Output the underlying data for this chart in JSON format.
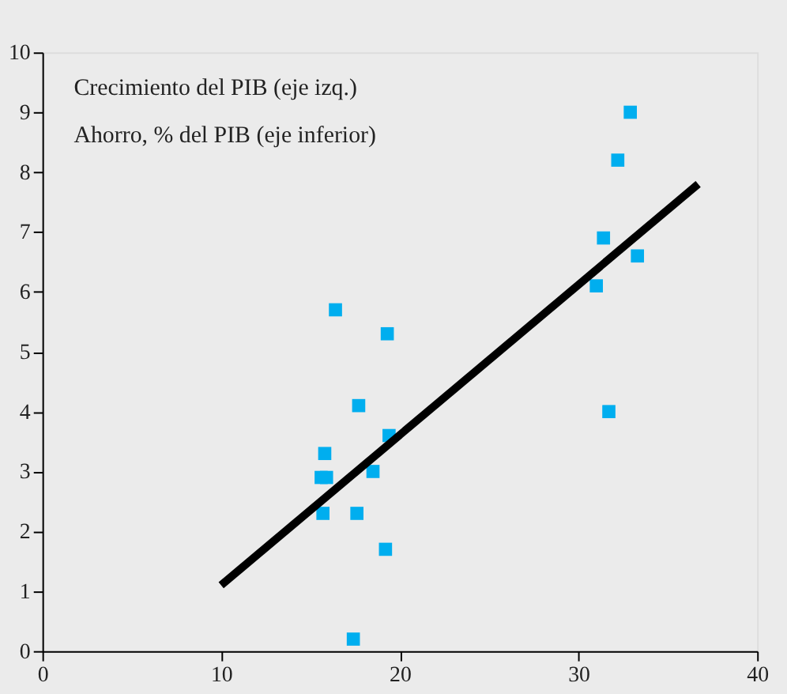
{
  "chart_data": {
    "type": "scatter",
    "annotations": [
      "Crecimiento del PIB (eje izq.)",
      "Ahorro, % del PIB (eje inferior)"
    ],
    "xlim": [
      0,
      40
    ],
    "xticks": [
      0,
      10,
      20,
      30,
      40
    ],
    "ylim": [
      0,
      10
    ],
    "yticks": [
      0,
      1,
      2,
      3,
      4,
      5,
      6,
      7,
      8,
      9,
      10
    ],
    "grid": false,
    "series": [
      {
        "color": "#00aeef",
        "marker": "square",
        "x": [
          16.4,
          19.3,
          17.7,
          19.4,
          15.8,
          15.6,
          15.9,
          18.5,
          15.7,
          17.6,
          19.2,
          17.4,
          32.9,
          32.2,
          31.4,
          31.0,
          33.3,
          31.7
        ],
        "values": [
          5.7,
          5.3,
          4.1,
          3.6,
          3.3,
          2.9,
          2.9,
          3.0,
          2.3,
          2.3,
          1.7,
          0.2,
          9.0,
          8.2,
          6.9,
          6.1,
          6.6,
          4.0
        ]
      },
      {
        "type": "line",
        "color": "#000000",
        "line_style": "solid",
        "x": [
          10,
          36.7
        ],
        "values": [
          1.1,
          7.8
        ]
      }
    ]
  }
}
